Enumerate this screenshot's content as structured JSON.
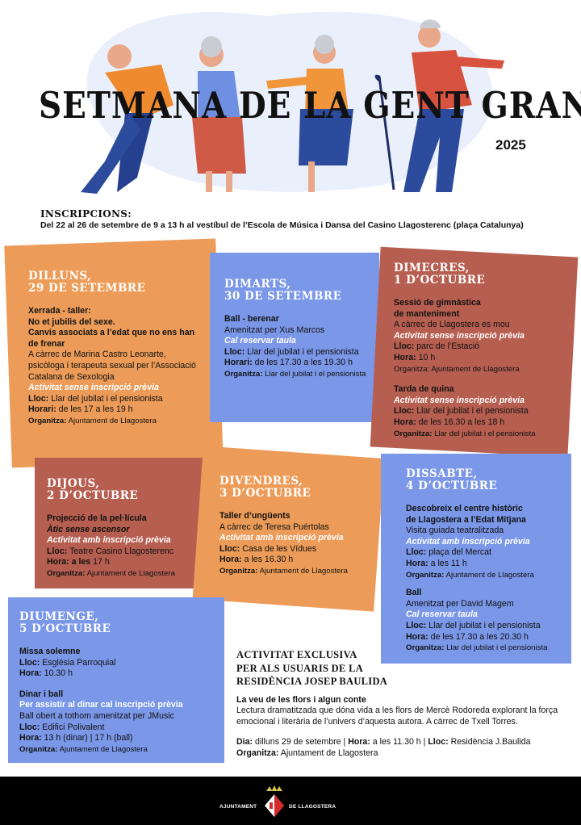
{
  "header": {
    "title": "SETMANA DE LA GENT GRAN",
    "year": "2025"
  },
  "inscriptions": {
    "heading": "INSCRIPCIONS:",
    "text": "Del 22 al 26 de setembre de 9 a 13 h al vestíbul de l’Escola de Música i Dansa del Casino Llagosterenc (plaça Catalunya)"
  },
  "colors": {
    "orange": "#ec9c58",
    "blue": "#7b97e8",
    "brown": "#b65e50",
    "footer": "#000000"
  },
  "days": [
    {
      "id": "dilluns",
      "title1": "DILLUNS,",
      "title2": "29 DE SETEMBRE",
      "events": [
        {
          "lines": [
            {
              "s": "bold",
              "t": "Xerrada - taller:"
            },
            {
              "s": "bold",
              "t": "No et jubilis del sexe."
            },
            {
              "s": "bold",
              "t": "Canvis associats a l’edat que no ens han de frenar"
            },
            {
              "s": "normal",
              "t": "A càrrec de Marina Castro Leonarte, psicòloga i terapeuta sexual per l’Associació Catalana de Sexologia"
            },
            {
              "s": "italic",
              "t": "Activitat sense inscripció prèvia"
            },
            {
              "s": "label",
              "l": "Lloc:",
              "t": " Llar del jubilat i el pensionista"
            },
            {
              "s": "label",
              "l": "Horari:",
              "t": " de les 17 a les 19  h"
            },
            {
              "s": "label-small",
              "l": "Organitza:",
              "t": " Ajuntament de Llagostera"
            }
          ]
        }
      ]
    },
    {
      "id": "dimarts",
      "title1": "DIMARTS,",
      "title2": "30 DE SETEMBRE",
      "events": [
        {
          "lines": [
            {
              "s": "bold",
              "t": "Ball - berenar"
            },
            {
              "s": "normal",
              "t": "Amenitzat per Xus Marcos"
            },
            {
              "s": "italic",
              "t": "Cal reservar taula"
            },
            {
              "s": "label",
              "l": "Lloc:",
              "t": " Llar del jubilat i el pensionista"
            },
            {
              "s": "label",
              "l": "Horari:",
              "t": " de les 17.30 a les 19.30 h"
            },
            {
              "s": "label-small",
              "l": "Organitza:",
              "t": " Llar del jubilat i el pensionista"
            }
          ]
        }
      ]
    },
    {
      "id": "dimecres",
      "title1": "DIMECRES,",
      "title2": "1 D’OCTUBRE",
      "events": [
        {
          "lines": [
            {
              "s": "bold",
              "t": "Sessió de gimnàstica"
            },
            {
              "s": "bold",
              "t": "de manteniment"
            },
            {
              "s": "normal",
              "t": "A càrrec de Llagostera es mou"
            },
            {
              "s": "italic",
              "t": "Activitat sense inscripció prèvia"
            },
            {
              "s": "label",
              "l": "Lloc:",
              "t": " parc de l’Estació"
            },
            {
              "s": "label",
              "l": "Hora:",
              "t": " 10 h"
            },
            {
              "s": "small",
              "t": "Organitza: Ajuntament de Llagostera"
            }
          ]
        },
        {
          "lines": [
            {
              "s": "bold",
              "t": "Tarda de quina"
            },
            {
              "s": "italic",
              "t": "Activitat sense inscripció prèvia"
            },
            {
              "s": "label",
              "l": "Lloc:",
              "t": " Llar del jubilat i el pensionista"
            },
            {
              "s": "label",
              "l": "Hora:",
              "t": " de les 16.30 a les 18 h"
            },
            {
              "s": "label-small",
              "l": "Organitza:",
              "t": " Llar del jubilat i el pensionista"
            }
          ]
        }
      ]
    },
    {
      "id": "dijous",
      "title1": "DIJOUS,",
      "title2": "2 D’OCTUBRE",
      "events": [
        {
          "lines": [
            {
              "s": "bold",
              "t": "Projecció de la pel·lícula"
            },
            {
              "s": "italic-dark",
              "t": "Àtic sense ascensor"
            },
            {
              "s": "italic",
              "t": "Activitat amb inscripció prèvia"
            },
            {
              "s": "label",
              "l": "Lloc:",
              "t": " Teatre Casino Llagosterenc"
            },
            {
              "s": "label",
              "l": "Hora: a les",
              "t": " 17 h"
            },
            {
              "s": "label-small",
              "l": "Organitza:",
              "t": " Ajuntament de Llagostera"
            }
          ]
        }
      ]
    },
    {
      "id": "divendres",
      "title1": "DIVENDRES,",
      "title2": "3 D’OCTUBRE",
      "events": [
        {
          "lines": [
            {
              "s": "bold",
              "t": "Taller d’ungüents"
            },
            {
              "s": "normal",
              "t": "A càrrec de Teresa Puértolas"
            },
            {
              "s": "italic",
              "t": "Activitat amb inscripció prèvia"
            },
            {
              "s": "label",
              "l": "Lloc:",
              "t": " Casa de les Vídues"
            },
            {
              "s": "label",
              "l": "Hora:",
              "t": " a les 16.30 h"
            },
            {
              "s": "label-small",
              "l": "Organitza:",
              "t": " Ajuntament de Llagostera"
            }
          ]
        }
      ]
    },
    {
      "id": "dissabte",
      "title1": "DISSABTE,",
      "title2": "4 D’OCTUBRE",
      "events": [
        {
          "lines": [
            {
              "s": "bold",
              "t": "Descobreix el centre històric"
            },
            {
              "s": "bold",
              "t": "de Llagostera a l’Edat Mitjana"
            },
            {
              "s": "normal",
              "t": "Visita guiada teatralitzada"
            },
            {
              "s": "italic",
              "t": "Activitat amb inscripció prèvia"
            },
            {
              "s": "label",
              "l": "Lloc:",
              "t": " plaça del Mercat"
            },
            {
              "s": "label",
              "l": "Hora:",
              "t": " a les 11 h"
            },
            {
              "s": "label-small",
              "l": "Organitza:",
              "t": " Ajuntament de Llagostera"
            }
          ]
        },
        {
          "lines": [
            {
              "s": "bold",
              "t": "Ball"
            },
            {
              "s": "normal",
              "t": "Amenitzat per David Magem"
            },
            {
              "s": "italic",
              "t": "Cal reservar taula"
            },
            {
              "s": "label",
              "l": "Lloc:",
              "t": " Llar del jubilat i el pensionista"
            },
            {
              "s": "label",
              "l": "Hora:",
              "t": " de les 17.30 a les 20.30 h"
            },
            {
              "s": "label-small",
              "l": "Organitza:",
              "t": " Llar del jubilat i el pensionista"
            }
          ]
        }
      ]
    },
    {
      "id": "diumenge",
      "title1": "DIUMENGE,",
      "title2": "5 D’OCTUBRE",
      "events": [
        {
          "lines": [
            {
              "s": "bold",
              "t": "Missa solemne"
            },
            {
              "s": "label",
              "l": "Lloc:",
              "t": " Església Parroquial"
            },
            {
              "s": "label",
              "l": "Hora:",
              "t": " 10.30 h"
            }
          ]
        },
        {
          "lines": [
            {
              "s": "bold",
              "t": "Dinar i ball"
            },
            {
              "s": "white",
              "t": "Per assistir al dinar cal inscripció prèvia"
            },
            {
              "s": "normal",
              "t": "Ball obert a tothom amenitzat per JMusic"
            },
            {
              "s": "label",
              "l": "Lloc:",
              "t": " Edifici Polivalent"
            },
            {
              "s": "label",
              "l": "Hora:",
              "t": " 13 h (dinar) | 17 h (ball)"
            },
            {
              "s": "label-small",
              "l": "Organitza:",
              "t": " Ajuntament de Llagostera"
            }
          ]
        }
      ]
    }
  ],
  "exclusive": {
    "heading1": "ACTIVITAT EXCLUSIVA",
    "heading2": "PER ALS USUARIS DE LA",
    "heading3": "RESIDÈNCIA JOSEP BAULIDA",
    "event_title": "La veu de les flors i algun conte",
    "description": "Lectura dramatitzada que dóna vida a les flors de Mercè Rodoreda explorant la força emocional i literària de l’univers d’aquesta autora. A càrrec de Txell Torres.",
    "dia_label": "Dia:",
    "dia": " dilluns 29 de setembre | ",
    "hora_label": "Hora:",
    "hora": " a les 11.30 h | ",
    "lloc_label": "Lloc:",
    "lloc": " Residència J.Baulida",
    "org_label": "Organitza:",
    "org": " Ajuntament de Llagostera"
  },
  "footer": {
    "left": "AJUNTAMENT",
    "right": "DE LLAGOSTERA",
    "logo": "coat-of-arms"
  }
}
